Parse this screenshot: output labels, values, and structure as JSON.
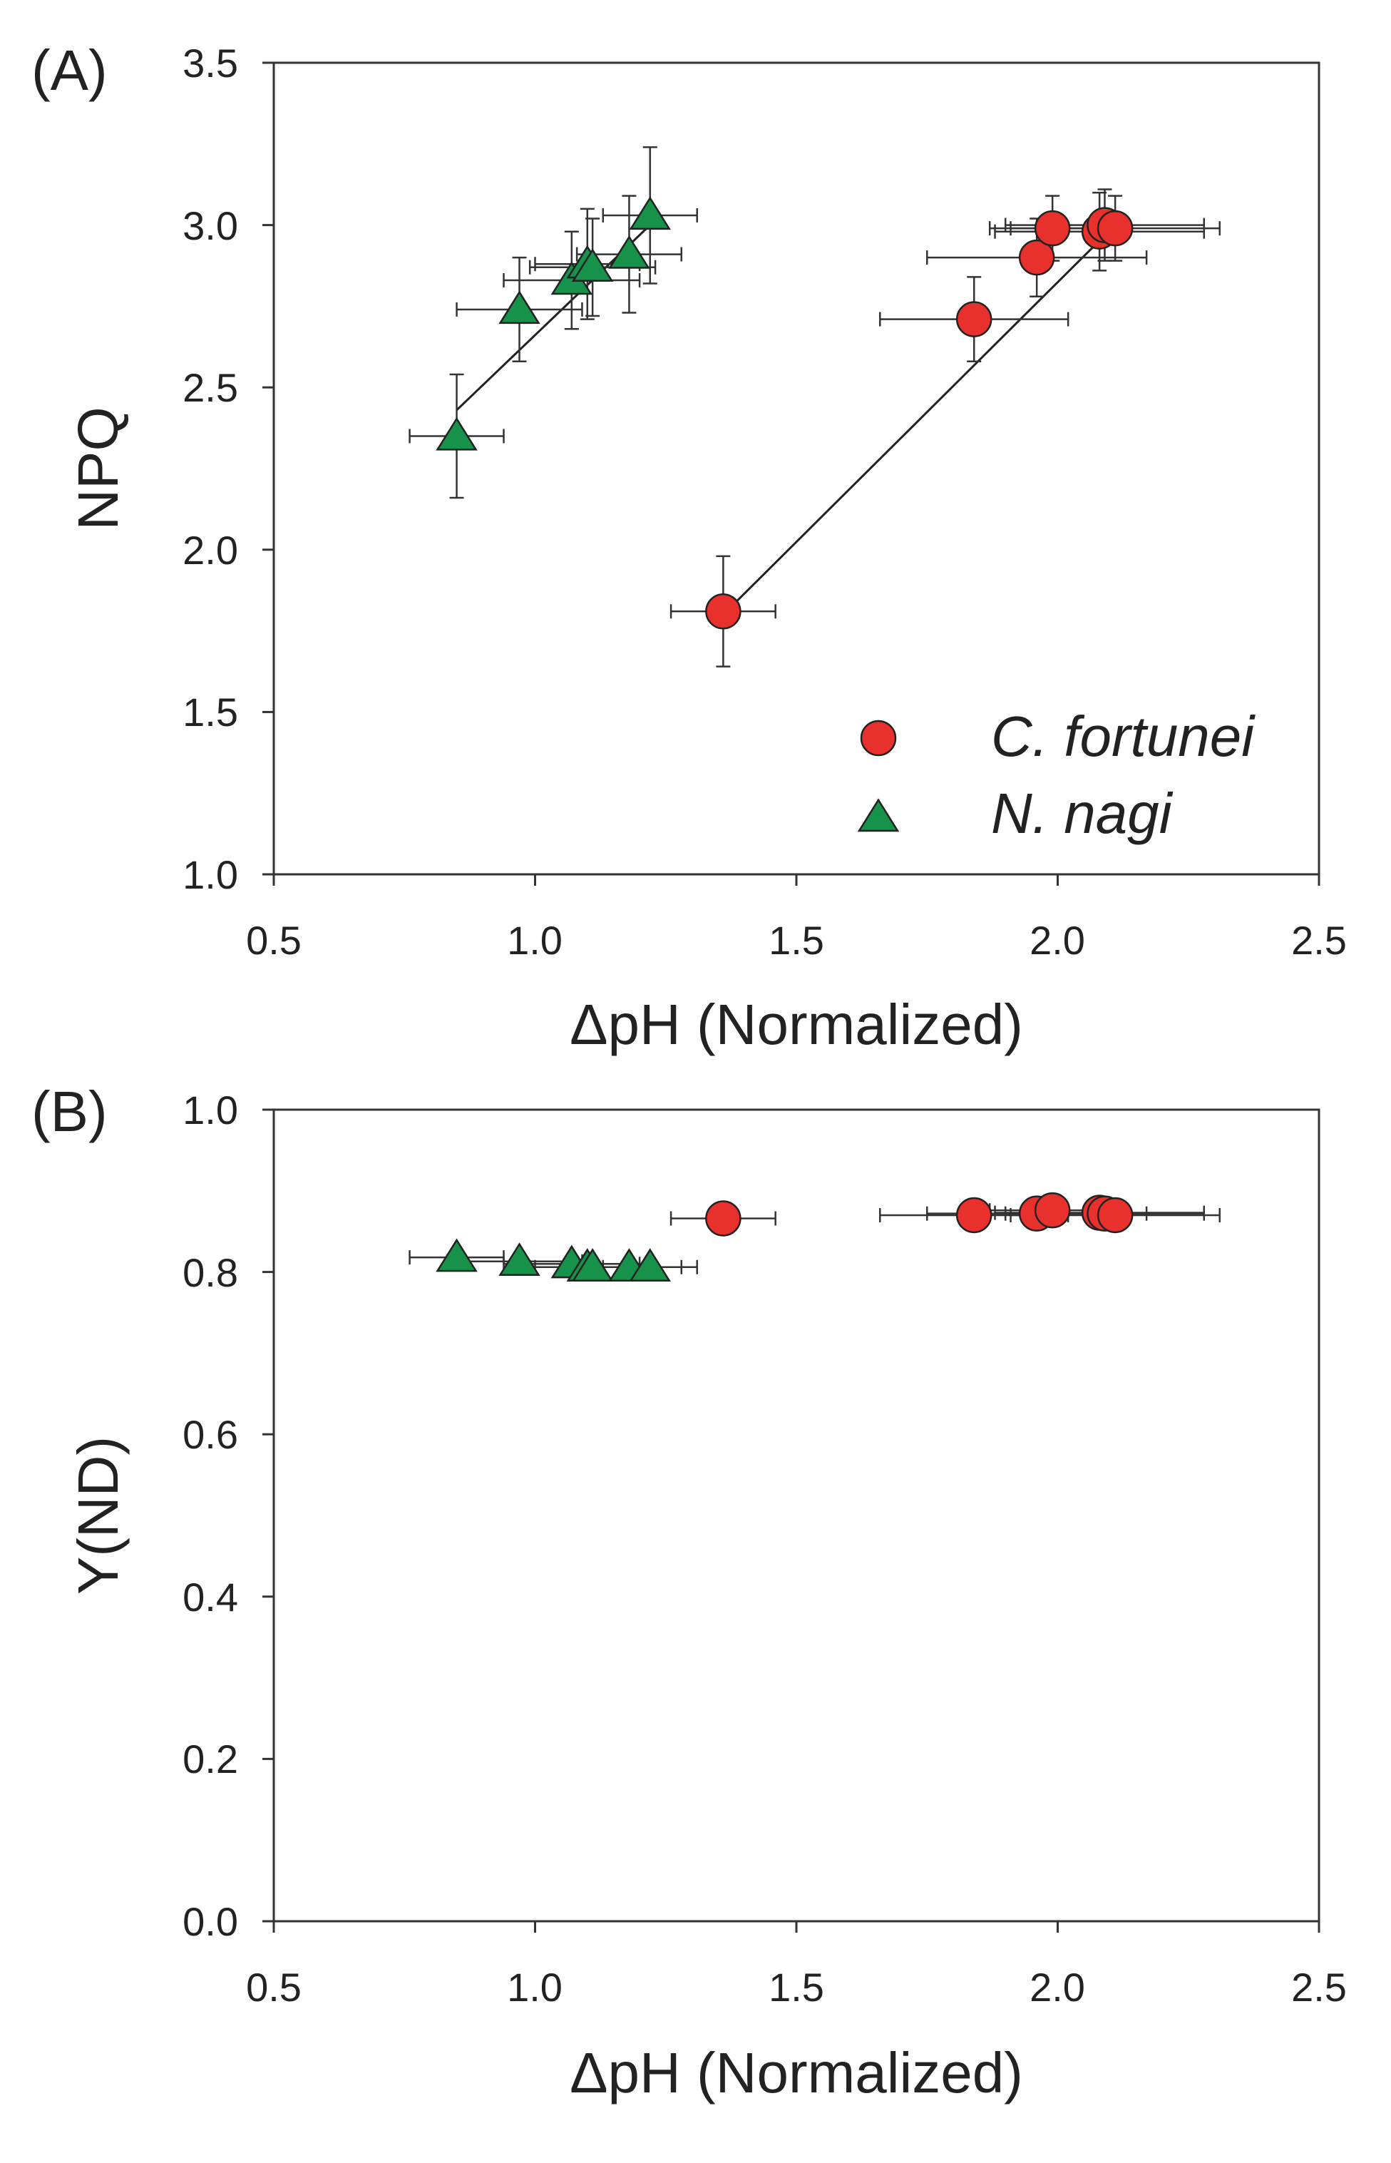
{
  "chart_data": [
    {
      "panel_label": "(A)",
      "type": "scatter",
      "xlabel": "ΔpH (Normalized)",
      "ylabel": "NPQ",
      "xlim": [
        0.5,
        2.5
      ],
      "ylim": [
        1.0,
        3.5
      ],
      "xticks": [
        "0.5",
        "1.0",
        "1.5",
        "2.0",
        "2.5"
      ],
      "yticks": [
        "1.0",
        "1.5",
        "2.0",
        "2.5",
        "3.0",
        "3.5"
      ],
      "legend": {
        "placement": "bottom-right"
      },
      "series": [
        {
          "name": "C. fortunei",
          "marker": "circle",
          "color": "#e8312c",
          "fit_line": {
            "x": [
              1.36,
              2.11
            ],
            "y": [
              1.8,
              3.0
            ]
          },
          "points": [
            {
              "x": 1.36,
              "y": 1.81,
              "xerr": 0.1,
              "yerr": 0.17
            },
            {
              "x": 1.84,
              "y": 2.71,
              "xerr": 0.18,
              "yerr": 0.13
            },
            {
              "x": 1.96,
              "y": 2.9,
              "xerr": 0.21,
              "yerr": 0.12
            },
            {
              "x": 1.99,
              "y": 2.99,
              "xerr": 0.12,
              "yerr": 0.1
            },
            {
              "x": 2.08,
              "y": 2.98,
              "xerr": 0.2,
              "yerr": 0.12
            },
            {
              "x": 2.09,
              "y": 3.0,
              "xerr": 0.19,
              "yerr": 0.11
            },
            {
              "x": 2.11,
              "y": 2.99,
              "xerr": 0.2,
              "yerr": 0.1
            }
          ]
        },
        {
          "name": "N. nagi",
          "marker": "triangle",
          "color": "#16924a",
          "fit_line": {
            "x": [
              0.85,
              1.22
            ],
            "y": [
              2.43,
              3.0
            ]
          },
          "points": [
            {
              "x": 0.85,
              "y": 2.35,
              "xerr": 0.09,
              "yerr": 0.19
            },
            {
              "x": 0.97,
              "y": 2.74,
              "xerr": 0.12,
              "yerr": 0.16
            },
            {
              "x": 1.07,
              "y": 2.83,
              "xerr": 0.13,
              "yerr": 0.15
            },
            {
              "x": 1.1,
              "y": 2.88,
              "xerr": 0.1,
              "yerr": 0.17
            },
            {
              "x": 1.11,
              "y": 2.87,
              "xerr": 0.12,
              "yerr": 0.15
            },
            {
              "x": 1.18,
              "y": 2.91,
              "xerr": 0.1,
              "yerr": 0.18
            },
            {
              "x": 1.22,
              "y": 3.03,
              "xerr": 0.09,
              "yerr": 0.21
            }
          ]
        }
      ]
    },
    {
      "panel_label": "(B)",
      "type": "scatter",
      "xlabel": "ΔpH (Normalized)",
      "ylabel": "Y(ND)",
      "xlim": [
        0.5,
        2.5
      ],
      "ylim": [
        0.0,
        1.0
      ],
      "xticks": [
        "0.5",
        "1.0",
        "1.5",
        "2.0",
        "2.5"
      ],
      "yticks": [
        "0.0",
        "0.2",
        "0.4",
        "0.6",
        "0.8",
        "1.0"
      ],
      "series": [
        {
          "name": "C. fortunei",
          "marker": "circle",
          "color": "#e8312c",
          "points": [
            {
              "x": 1.36,
              "y": 0.866,
              "xerr": 0.1,
              "yerr": 0.0
            },
            {
              "x": 1.84,
              "y": 0.87,
              "xerr": 0.18,
              "yerr": 0.0
            },
            {
              "x": 1.96,
              "y": 0.872,
              "xerr": 0.21,
              "yerr": 0.0
            },
            {
              "x": 1.99,
              "y": 0.876,
              "xerr": 0.12,
              "yerr": 0.0
            },
            {
              "x": 2.08,
              "y": 0.873,
              "xerr": 0.2,
              "yerr": 0.0
            },
            {
              "x": 2.09,
              "y": 0.872,
              "xerr": 0.19,
              "yerr": 0.0
            },
            {
              "x": 2.11,
              "y": 0.87,
              "xerr": 0.2,
              "yerr": 0.0
            }
          ]
        },
        {
          "name": "N. nagi",
          "marker": "triangle",
          "color": "#16924a",
          "points": [
            {
              "x": 0.85,
              "y": 0.818,
              "xerr": 0.09,
              "yerr": 0.0
            },
            {
              "x": 0.97,
              "y": 0.813,
              "xerr": 0.12,
              "yerr": 0.0
            },
            {
              "x": 1.07,
              "y": 0.81,
              "xerr": 0.13,
              "yerr": 0.0
            },
            {
              "x": 1.1,
              "y": 0.806,
              "xerr": 0.1,
              "yerr": 0.0
            },
            {
              "x": 1.11,
              "y": 0.806,
              "xerr": 0.12,
              "yerr": 0.0
            },
            {
              "x": 1.18,
              "y": 0.806,
              "xerr": 0.1,
              "yerr": 0.0
            },
            {
              "x": 1.22,
              "y": 0.806,
              "xerr": 0.09,
              "yerr": 0.0
            }
          ]
        }
      ]
    }
  ]
}
